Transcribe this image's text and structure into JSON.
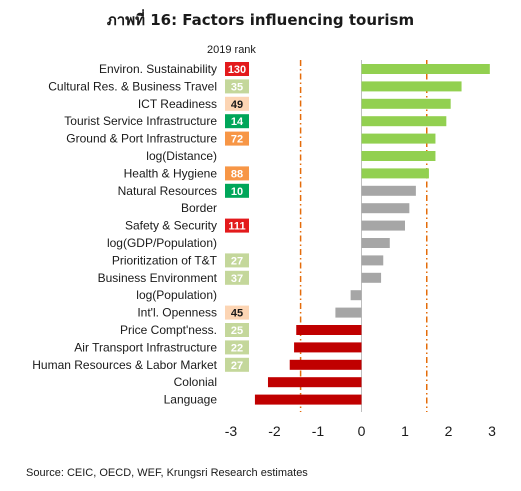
{
  "chart_data": {
    "type": "bar",
    "orientation": "horizontal",
    "title": "ภาพที่ 16: Factors influencing tourism",
    "rank_header": "2019 rank",
    "source": "Source: CEIC, OECD, WEF, Krungsri Research estimates",
    "xlim": [
      -3,
      3
    ],
    "xticks": [
      "-3",
      "-2",
      "-1",
      "0",
      "1",
      "2",
      "3"
    ],
    "reference_lines": [
      -1.4,
      1.5
    ],
    "colors": {
      "positive_high": "#92d050",
      "neutral": "#a6a6a6",
      "negative": "#c00000",
      "ref_line": "#e46c0a",
      "rank_red": "#e31a1c",
      "rank_lightgreen": "#c4d79b",
      "rank_yellow": "#fcd5b4",
      "rank_orange": "#f79646",
      "rank_green": "#00a65a"
    },
    "categories": [
      {
        "label": "Environ. Sustainability",
        "value": 2.95,
        "bar": "positive_high",
        "rank": "130",
        "rank_color": "rank_red",
        "rank_text": "#ffffff"
      },
      {
        "label": "Cultural Res. & Business Travel",
        "value": 2.3,
        "bar": "positive_high",
        "rank": "35",
        "rank_color": "rank_lightgreen",
        "rank_text": "#ffffff"
      },
      {
        "label": "ICT Readiness",
        "value": 2.05,
        "bar": "positive_high",
        "rank": "49",
        "rank_color": "rank_yellow",
        "rank_text": "#1a1a1a"
      },
      {
        "label": "Tourist Service Infrastructure",
        "value": 1.95,
        "bar": "positive_high",
        "rank": "14",
        "rank_color": "rank_green",
        "rank_text": "#ffffff"
      },
      {
        "label": "Ground & Port Infrastructure",
        "value": 1.7,
        "bar": "positive_high",
        "rank": "72",
        "rank_color": "rank_orange",
        "rank_text": "#ffffff"
      },
      {
        "label": "log(Distance)",
        "value": 1.7,
        "bar": "positive_high",
        "rank": "",
        "rank_color": "",
        "rank_text": ""
      },
      {
        "label": "Health & Hygiene",
        "value": 1.55,
        "bar": "positive_high",
        "rank": "88",
        "rank_color": "rank_orange",
        "rank_text": "#ffffff"
      },
      {
        "label": "Natural Resources",
        "value": 1.25,
        "bar": "neutral",
        "rank": "10",
        "rank_color": "rank_green",
        "rank_text": "#ffffff"
      },
      {
        "label": "Border",
        "value": 1.1,
        "bar": "neutral",
        "rank": "",
        "rank_color": "",
        "rank_text": ""
      },
      {
        "label": "Safety & Security",
        "value": 1.0,
        "bar": "neutral",
        "rank": "111",
        "rank_color": "rank_red",
        "rank_text": "#ffffff"
      },
      {
        "label": "log(GDP/Population)",
        "value": 0.65,
        "bar": "neutral",
        "rank": "",
        "rank_color": "",
        "rank_text": ""
      },
      {
        "label": "Prioritization of T&T",
        "value": 0.5,
        "bar": "neutral",
        "rank": "27",
        "rank_color": "rank_lightgreen",
        "rank_text": "#ffffff"
      },
      {
        "label": "Business Environment",
        "value": 0.45,
        "bar": "neutral",
        "rank": "37",
        "rank_color": "rank_lightgreen",
        "rank_text": "#ffffff"
      },
      {
        "label": "log(Population)",
        "value": -0.25,
        "bar": "neutral",
        "rank": "",
        "rank_color": "",
        "rank_text": ""
      },
      {
        "label": "Int'l. Openness",
        "value": -0.6,
        "bar": "neutral",
        "rank": "45",
        "rank_color": "rank_yellow",
        "rank_text": "#1a1a1a"
      },
      {
        "label": "Price Compt'ness.",
        "value": -1.5,
        "bar": "negative",
        "rank": "25",
        "rank_color": "rank_lightgreen",
        "rank_text": "#ffffff"
      },
      {
        "label": "Air Transport Infrastructure",
        "value": -1.55,
        "bar": "negative",
        "rank": "22",
        "rank_color": "rank_lightgreen",
        "rank_text": "#ffffff"
      },
      {
        "label": "Human Resources & Labor Market",
        "value": -1.65,
        "bar": "negative",
        "rank": "27",
        "rank_color": "rank_lightgreen",
        "rank_text": "#ffffff"
      },
      {
        "label": "Colonial",
        "value": -2.15,
        "bar": "negative",
        "rank": "",
        "rank_color": "",
        "rank_text": ""
      },
      {
        "label": "Language",
        "value": -2.45,
        "bar": "negative",
        "rank": "",
        "rank_color": "",
        "rank_text": ""
      }
    ]
  }
}
